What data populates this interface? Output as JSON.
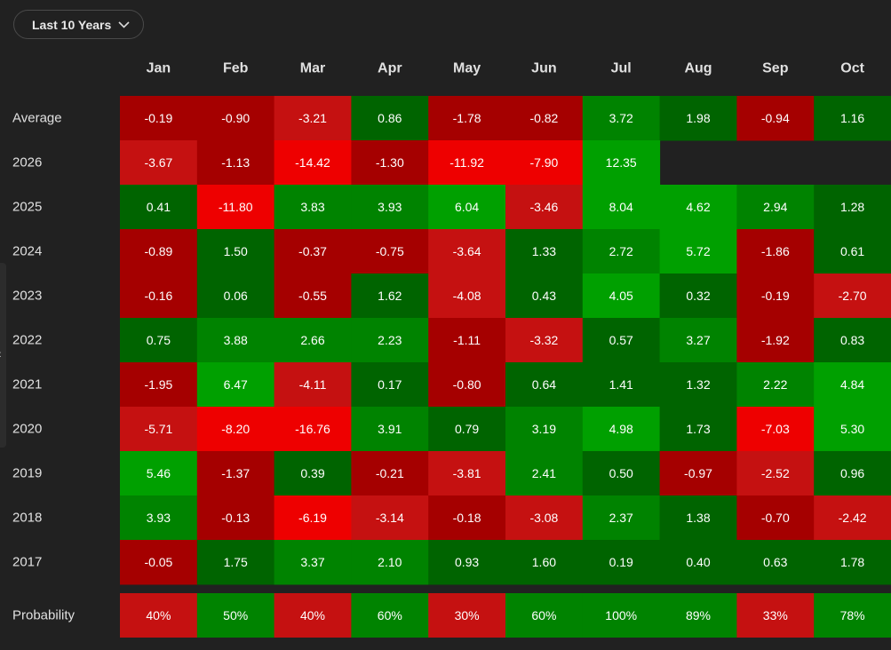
{
  "range_selector": {
    "label": "Last 10 Years",
    "icon": "chevron-down-icon"
  },
  "nav": {
    "left_icon": "chevron-left-icon",
    "right_icon": "chevron-right-icon"
  },
  "colors": {
    "background": "#212121",
    "text": "#ffffff",
    "label": "#e0e0e0",
    "positive_light": "#00a000",
    "positive_mid": "#008300",
    "positive_dark": "#006400",
    "negative_light": "#ee0000",
    "negative_mid": "#c51111",
    "negative_dark": "#a50000"
  },
  "chart_data": {
    "type": "heatmap",
    "title": "",
    "months": [
      "Jan",
      "Feb",
      "Mar",
      "Apr",
      "May",
      "Jun",
      "Jul",
      "Aug",
      "Sep",
      "Oct"
    ],
    "rows": [
      {
        "label": "Average",
        "values": [
          "-0.19",
          "-0.90",
          "-3.21",
          "0.86",
          "-1.78",
          "-0.82",
          "3.72",
          "1.98",
          "-0.94",
          "1.16"
        ]
      },
      {
        "label": "2026",
        "values": [
          "-3.67",
          "-1.13",
          "-14.42",
          "-1.30",
          "-11.92",
          "-7.90",
          "12.35",
          null,
          null,
          null
        ]
      },
      {
        "label": "2025",
        "values": [
          "0.41",
          "-11.80",
          "3.83",
          "3.93",
          "6.04",
          "-3.46",
          "8.04",
          "4.62",
          "2.94",
          "1.28"
        ]
      },
      {
        "label": "2024",
        "values": [
          "-0.89",
          "1.50",
          "-0.37",
          "-0.75",
          "-3.64",
          "1.33",
          "2.72",
          "5.72",
          "-1.86",
          "0.61"
        ]
      },
      {
        "label": "2023",
        "values": [
          "-0.16",
          "0.06",
          "-0.55",
          "1.62",
          "-4.08",
          "0.43",
          "4.05",
          "0.32",
          "-0.19",
          "-2.70"
        ]
      },
      {
        "label": "2022",
        "values": [
          "0.75",
          "3.88",
          "2.66",
          "2.23",
          "-1.11",
          "-3.32",
          "0.57",
          "3.27",
          "-1.92",
          "0.83"
        ]
      },
      {
        "label": "2021",
        "values": [
          "-1.95",
          "6.47",
          "-4.11",
          "0.17",
          "-0.80",
          "0.64",
          "1.41",
          "1.32",
          "2.22",
          "4.84"
        ]
      },
      {
        "label": "2020",
        "values": [
          "-5.71",
          "-8.20",
          "-16.76",
          "3.91",
          "0.79",
          "3.19",
          "4.98",
          "1.73",
          "-7.03",
          "5.30"
        ]
      },
      {
        "label": "2019",
        "values": [
          "5.46",
          "-1.37",
          "0.39",
          "-0.21",
          "-3.81",
          "2.41",
          "0.50",
          "-0.97",
          "-2.52",
          "0.96"
        ]
      },
      {
        "label": "2018",
        "values": [
          "3.93",
          "-0.13",
          "-6.19",
          "-3.14",
          "-0.18",
          "-3.08",
          "2.37",
          "1.38",
          "-0.70",
          "-2.42"
        ]
      },
      {
        "label": "2017",
        "values": [
          "-0.05",
          "1.75",
          "3.37",
          "2.10",
          "0.93",
          "1.60",
          "0.19",
          "0.40",
          "0.63",
          "1.78"
        ]
      }
    ],
    "probability": {
      "label": "Probability",
      "values": [
        "40%",
        "50%",
        "40%",
        "60%",
        "30%",
        "60%",
        "100%",
        "89%",
        "33%",
        "78%"
      ]
    }
  }
}
